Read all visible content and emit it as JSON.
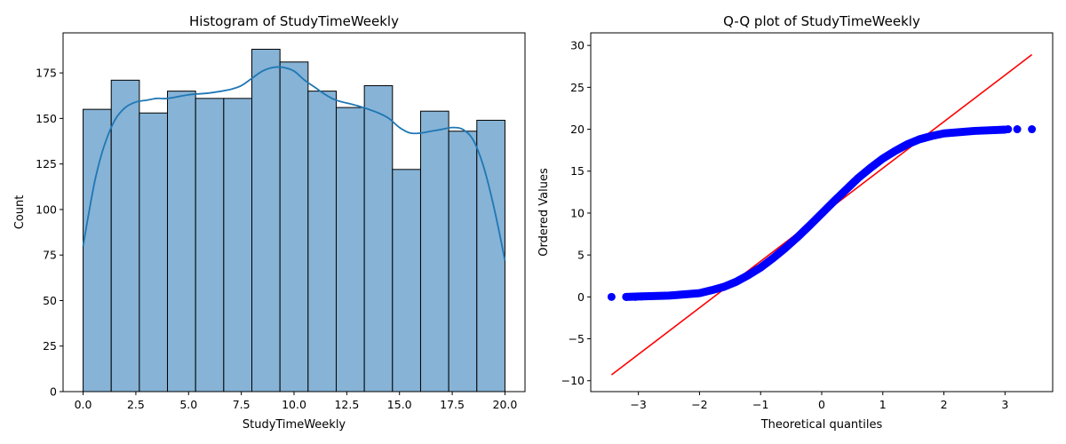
{
  "chart_data": [
    {
      "type": "bar",
      "title": "Histogram of StudyTimeWeekly",
      "xlabel": "StudyTimeWeekly",
      "ylabel": "Count",
      "xlim": [
        -0.95,
        20.95
      ],
      "ylim": [
        0,
        197
      ],
      "xticks": [
        0.0,
        2.5,
        5.0,
        7.5,
        10.0,
        12.5,
        15.0,
        17.5,
        20.0
      ],
      "xtick_labels": [
        "0.0",
        "2.5",
        "5.0",
        "7.5",
        "10.0",
        "12.5",
        "15.0",
        "17.5",
        "20.0"
      ],
      "yticks": [
        0,
        25,
        50,
        75,
        100,
        125,
        150,
        175
      ],
      "ytick_labels": [
        "0",
        "25",
        "50",
        "75",
        "100",
        "125",
        "150",
        "175"
      ],
      "bin_edges": [
        0,
        1.3333,
        2.6667,
        4.0,
        5.3333,
        6.6667,
        8.0,
        9.3333,
        10.6667,
        12.0,
        13.3333,
        14.6667,
        16.0,
        17.3333,
        18.6667,
        20.0
      ],
      "values": [
        155,
        171,
        153,
        165,
        161,
        161,
        188,
        181,
        165,
        156,
        168,
        122,
        154,
        143,
        149
      ],
      "kde": {
        "x": [
          0.0,
          0.3,
          0.6,
          1.0,
          1.5,
          2.0,
          2.5,
          3.0,
          3.5,
          4.0,
          5.0,
          6.0,
          7.0,
          7.5,
          8.0,
          8.5,
          9.0,
          9.5,
          10.0,
          10.5,
          11.0,
          11.5,
          12.0,
          13.0,
          14.0,
          14.5,
          15.0,
          15.5,
          16.0,
          16.5,
          17.0,
          17.5,
          18.0,
          18.5,
          19.0,
          19.5,
          20.0
        ],
        "y": [
          80,
          100,
          118,
          135,
          149,
          156,
          159,
          160,
          161,
          161,
          163,
          164,
          166,
          168,
          172,
          176,
          178,
          178,
          176,
          171,
          167,
          163,
          160,
          157,
          153,
          150,
          145,
          142,
          142,
          143,
          144,
          145,
          144,
          138,
          123,
          100,
          72
        ]
      },
      "bar_color": "#86b3d6",
      "kde_color": "#1f77b4",
      "grid": false
    },
    {
      "type": "scatter",
      "title": "Q-Q plot of StudyTimeWeekly",
      "xlabel": "Theoretical quantiles",
      "ylabel": "Ordered Values",
      "xlim": [
        -3.78,
        3.78
      ],
      "ylim": [
        -11.3,
        31.5
      ],
      "xticks": [
        -3,
        -2,
        -1,
        0,
        1,
        2,
        3
      ],
      "xtick_labels": [
        "−3",
        "−2",
        "−1",
        "0",
        "1",
        "2",
        "3"
      ],
      "yticks": [
        -10,
        -5,
        0,
        5,
        10,
        15,
        20,
        25,
        30
      ],
      "ytick_labels": [
        "−10",
        "−5",
        "0",
        "5",
        "10",
        "15",
        "20",
        "25",
        "30"
      ],
      "ordered_curve": {
        "x": [
          -3.2,
          -3.0,
          -2.5,
          -2.0,
          -1.8,
          -1.6,
          -1.4,
          -1.2,
          -1.0,
          -0.8,
          -0.6,
          -0.4,
          -0.2,
          0.0,
          0.2,
          0.4,
          0.6,
          0.8,
          1.0,
          1.2,
          1.4,
          1.6,
          1.8,
          2.0,
          2.5,
          3.0
        ],
        "y": [
          0.0,
          0.05,
          0.15,
          0.45,
          0.8,
          1.2,
          1.8,
          2.6,
          3.5,
          4.6,
          5.8,
          7.1,
          8.5,
          9.95,
          11.4,
          12.8,
          14.2,
          15.4,
          16.5,
          17.4,
          18.2,
          18.8,
          19.2,
          19.5,
          19.8,
          19.95
        ]
      },
      "outlier_points": {
        "x": [
          -3.44,
          -3.2,
          -3.05,
          -2.95,
          3.05,
          3.2,
          3.44
        ],
        "y": [
          0.0,
          0.0,
          0.0,
          0.05,
          20.0,
          20.0,
          20.0
        ]
      },
      "fit_line": {
        "x": [
          -3.44,
          3.44
        ],
        "y": [
          -9.3,
          28.9
        ]
      },
      "point_color": "#0000ff",
      "line_color": "#ff0000",
      "grid": false
    }
  ]
}
